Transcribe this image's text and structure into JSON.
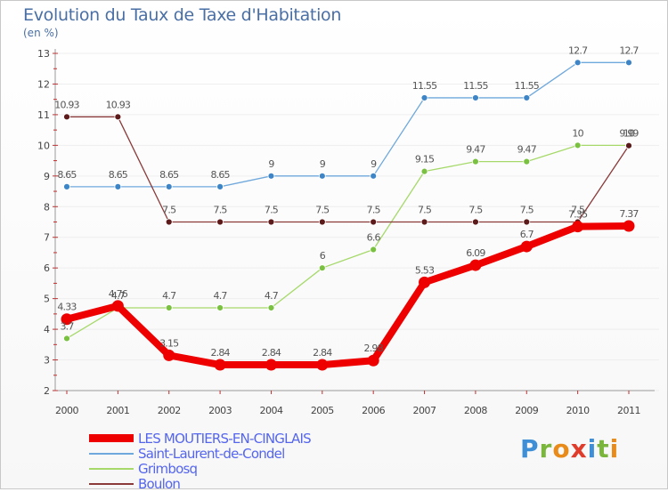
{
  "title": "Evolution du Taux de Taxe d'Habitation",
  "unit_label": "(en %)",
  "logo": {
    "text": "Proxiti",
    "letters": [
      {
        "ch": "P",
        "color": "#3e8fd6"
      },
      {
        "ch": "r",
        "color": "#7ab53c"
      },
      {
        "ch": "o",
        "color": "#e88b1a"
      },
      {
        "ch": "x",
        "color": "#e03c2c"
      },
      {
        "ch": "i",
        "color": "#3e8fd6"
      },
      {
        "ch": "t",
        "color": "#7ab53c"
      },
      {
        "ch": "i",
        "color": "#e88b1a"
      }
    ]
  },
  "chart_data": {
    "type": "line",
    "title": "Evolution du Taux de Taxe d'Habitation",
    "ylabel": "(en %)",
    "xlabel": "",
    "x": [
      "2000",
      "2001",
      "2002",
      "2003",
      "2004",
      "2005",
      "2006",
      "2007",
      "2008",
      "2009",
      "2010",
      "2011"
    ],
    "ylim": [
      2,
      13
    ],
    "yticks": [
      2,
      3,
      4,
      5,
      6,
      7,
      8,
      9,
      10,
      11,
      12,
      13
    ],
    "legend_position": "bottom-left",
    "series": [
      {
        "name": "LES MOUTIERS-EN-CINGLAIS",
        "color": "#ee0000",
        "emphasis": true,
        "values": [
          4.33,
          4.76,
          3.15,
          2.84,
          2.84,
          2.84,
          2.98,
          5.53,
          6.09,
          6.7,
          7.35,
          7.37
        ],
        "labels": [
          "4.33",
          "4.76",
          "3.15",
          "2.84",
          "2.84",
          "2.84",
          "2.98",
          "5.53",
          "6.09",
          "6.7",
          "7.35",
          "7.37"
        ]
      },
      {
        "name": "Saint-Laurent-de-Condel",
        "color": "#6fa8dc",
        "point_color": "#3d85c6",
        "emphasis": false,
        "values": [
          8.65,
          8.65,
          8.65,
          8.65,
          9,
          9,
          9,
          11.55,
          11.55,
          11.55,
          12.7,
          12.7
        ],
        "labels": [
          "8.65",
          "8.65",
          "8.65",
          "8.65",
          "9",
          "9",
          "9",
          "11.55",
          "11.55",
          "11.55",
          "12.7",
          "12.7"
        ]
      },
      {
        "name": "Grimbosq",
        "color": "#a6d96a",
        "point_color": "#7ac142",
        "emphasis": false,
        "values": [
          3.7,
          4.7,
          4.7,
          4.7,
          4.7,
          6,
          6.6,
          9.15,
          9.47,
          9.47,
          10,
          10
        ],
        "labels": [
          "3.7",
          "4.7",
          "4.7",
          "4.7",
          "4.7",
          "6",
          "6.6",
          "9.15",
          "9.47",
          "9.47",
          "10",
          "10"
        ]
      },
      {
        "name": "Boulon",
        "color": "#8b3a3a",
        "point_color": "#5c1a1a",
        "emphasis": false,
        "values": [
          10.93,
          10.93,
          7.5,
          7.5,
          7.5,
          7.5,
          7.5,
          7.5,
          7.5,
          7.5,
          7.5,
          9.99
        ],
        "labels": [
          "10.93",
          "10.93",
          "7.5",
          "7.5",
          "7.5",
          "7.5",
          "7.5",
          "7.5",
          "7.5",
          "7.5",
          "7.5",
          "9.99"
        ]
      }
    ]
  }
}
